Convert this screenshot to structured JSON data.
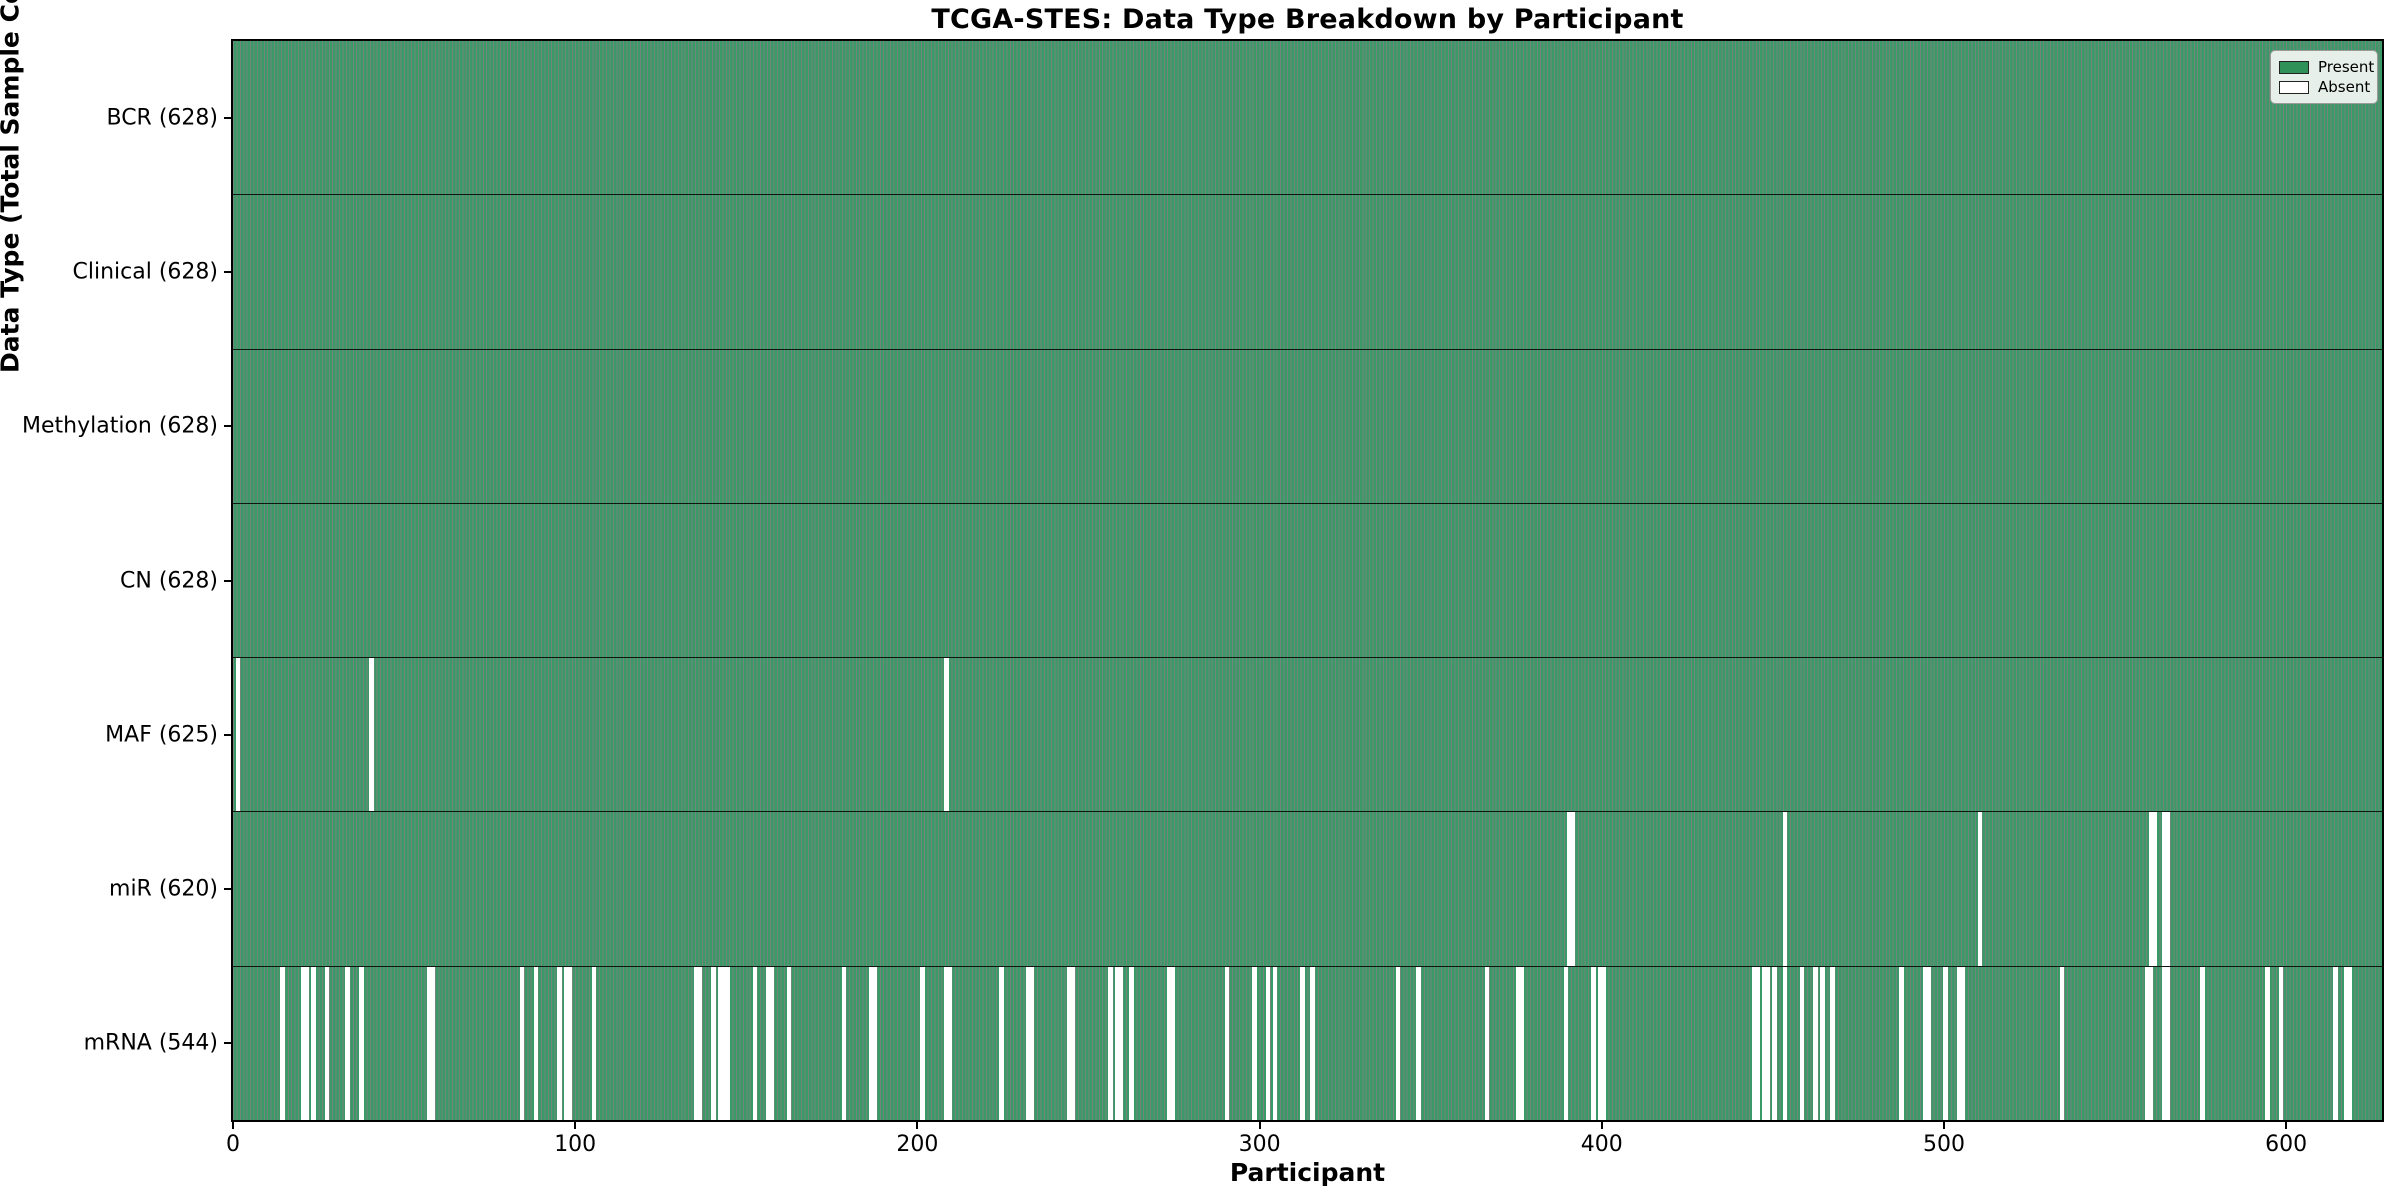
{
  "chart_data": {
    "type": "heatmap",
    "title": "TCGA-STES: Data Type Breakdown by Participant",
    "xlabel": "Participant",
    "ylabel": "Data Type (Total Sample Count)",
    "grid": false,
    "legend_position": "upper right",
    "x_axis": {
      "min": 0,
      "max": 628,
      "ticks": [
        0,
        100,
        200,
        300,
        400,
        500,
        600
      ]
    },
    "n_participants": 628,
    "legend": [
      {
        "name": "present",
        "label": "Present",
        "color": "#2f9058"
      },
      {
        "name": "absent",
        "label": "Absent",
        "color": "#ffffff"
      }
    ],
    "colors": {
      "present_fill": "#3a9a67",
      "bar_edge": "rgba(5, 30, 16, 0.55)",
      "absent_fill": "#ffffff",
      "row_separator": "rgba(0,0,0,0.85)",
      "spine": "#000000"
    },
    "rows": [
      {
        "name": "BCR",
        "label": "BCR (628)",
        "total": 628,
        "absent_participants": []
      },
      {
        "name": "Clinical",
        "label": "Clinical (628)",
        "total": 628,
        "absent_participants": []
      },
      {
        "name": "Methylation",
        "label": "Methylation (628)",
        "total": 628,
        "absent_participants": []
      },
      {
        "name": "CN",
        "label": "CN (628)",
        "total": 628,
        "absent_participants": []
      },
      {
        "name": "MAF",
        "label": "MAF (625)",
        "total": 625,
        "absent_participants": [
          1,
          40,
          208
        ]
      },
      {
        "name": "miR",
        "label": "miR (620)",
        "total": 620,
        "absent_participants": [
          390,
          391,
          453,
          510,
          560,
          561,
          564,
          565
        ]
      },
      {
        "name": "mRNA",
        "label": "mRNA (544)",
        "total": 544,
        "absent_participants": [
          14,
          20,
          21,
          23,
          27,
          33,
          37,
          57,
          58,
          84,
          88,
          95,
          97,
          98,
          105,
          135,
          136,
          140,
          142,
          143,
          144,
          152,
          156,
          157,
          162,
          178,
          186,
          187,
          201,
          208,
          209,
          224,
          232,
          233,
          244,
          245,
          256,
          258,
          259,
          262,
          273,
          274,
          290,
          298,
          302,
          304,
          312,
          315,
          340,
          346,
          366,
          375,
          376,
          389,
          397,
          399,
          400,
          444,
          445,
          447,
          448,
          450,
          453,
          458,
          462,
          464,
          467,
          487,
          494,
          495,
          500,
          504,
          505,
          534,
          559,
          560,
          564,
          565,
          575,
          594,
          598,
          614,
          617,
          618
        ]
      }
    ]
  }
}
